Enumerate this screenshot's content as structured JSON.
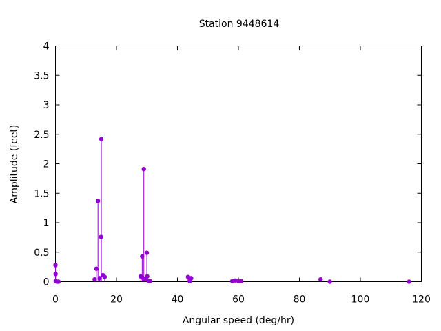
{
  "chart_data": {
    "type": "scatter",
    "style": "impulses-with-points",
    "title": "Station 9448614",
    "xlabel": "Angular speed (deg/hr)",
    "ylabel": "Amplitude (feet)",
    "xlim": [
      0,
      120
    ],
    "ylim": [
      0,
      4
    ],
    "x_ticks": [
      "0",
      "20",
      "40",
      "60",
      "80",
      "100",
      "120"
    ],
    "y_ticks": [
      "0",
      "0.5",
      "1",
      "1.5",
      "2",
      "2.5",
      "3",
      "3.5",
      "4"
    ],
    "grid": false,
    "legend": "none",
    "color": "#9400d3",
    "series": [
      {
        "points": [
          {
            "x": 0.0,
            "y": 0.28
          },
          {
            "x": 0.04,
            "y": 0.13
          },
          {
            "x": 0.08,
            "y": 0.01
          },
          {
            "x": 0.5,
            "y": 0.0
          },
          {
            "x": 1.0,
            "y": 0.0
          },
          {
            "x": 12.85,
            "y": 0.04
          },
          {
            "x": 13.4,
            "y": 0.22
          },
          {
            "x": 13.94,
            "y": 1.37
          },
          {
            "x": 14.5,
            "y": 0.06
          },
          {
            "x": 14.96,
            "y": 0.76
          },
          {
            "x": 15.04,
            "y": 2.42
          },
          {
            "x": 15.6,
            "y": 0.11
          },
          {
            "x": 16.14,
            "y": 0.08
          },
          {
            "x": 27.97,
            "y": 0.09
          },
          {
            "x": 28.44,
            "y": 0.43
          },
          {
            "x": 28.51,
            "y": 0.07
          },
          {
            "x": 28.98,
            "y": 1.91
          },
          {
            "x": 29.46,
            "y": 0.04
          },
          {
            "x": 29.96,
            "y": 0.49
          },
          {
            "x": 30.08,
            "y": 0.09
          },
          {
            "x": 30.63,
            "y": 0.01
          },
          {
            "x": 31.02,
            "y": 0.01
          },
          {
            "x": 43.48,
            "y": 0.08
          },
          {
            "x": 44.03,
            "y": 0.01
          },
          {
            "x": 44.5,
            "y": 0.06
          },
          {
            "x": 57.97,
            "y": 0.01
          },
          {
            "x": 58.98,
            "y": 0.02
          },
          {
            "x": 60.0,
            "y": 0.01
          },
          {
            "x": 60.9,
            "y": 0.01
          },
          {
            "x": 86.95,
            "y": 0.04
          },
          {
            "x": 89.96,
            "y": 0.0
          },
          {
            "x": 115.94,
            "y": 0.0
          }
        ]
      }
    ]
  }
}
